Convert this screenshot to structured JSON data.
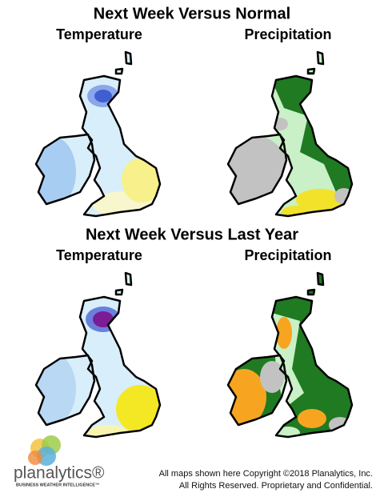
{
  "sections": [
    {
      "title": "Next Week Versus Normal",
      "maps": [
        {
          "label": "Temperature"
        },
        {
          "label": "Precipitation"
        }
      ]
    },
    {
      "title": "Next Week Versus Last Year",
      "maps": [
        {
          "label": "Temperature"
        },
        {
          "label": "Precipitation"
        }
      ]
    }
  ],
  "logo": {
    "name": "planalytics®",
    "tagline": "BUSINESS WEATHER INTELLIGENCE™"
  },
  "footer": {
    "lines": [
      "All maps shown here Copyright ©2018 Planalytics, Inc.",
      "All Rights Reserved. Proprietary and Confidential."
    ]
  }
}
